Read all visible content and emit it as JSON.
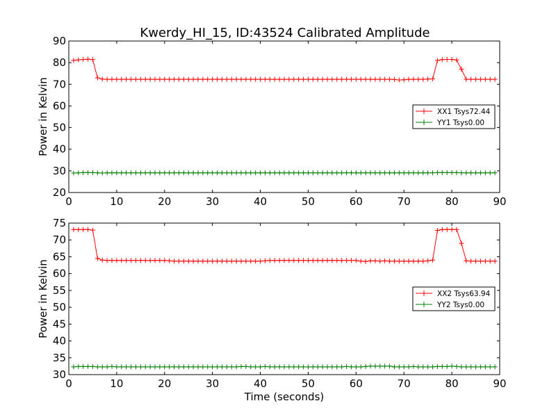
{
  "title": "Kwerdy_HI_15, ID:43524 Calibrated Amplitude",
  "colors": {
    "xx": "#ff0000",
    "yy": "#008000"
  },
  "chart_data": [
    {
      "type": "line",
      "ylabel": "Power in Kelvin",
      "xlabel": "",
      "xlim": [
        0,
        90
      ],
      "ylim": [
        20,
        90
      ],
      "xticks": [
        0,
        10,
        20,
        30,
        40,
        50,
        60,
        70,
        80,
        90
      ],
      "yticks": [
        20,
        30,
        40,
        50,
        60,
        70,
        80,
        90
      ],
      "grid": false,
      "legend_position": "center-right",
      "series": [
        {
          "name": "XX1 Tsys72.44",
          "color": "#ff0000",
          "x": [
            1,
            2,
            3,
            4,
            5,
            6,
            7,
            8,
            9,
            10,
            11,
            12,
            13,
            14,
            15,
            16,
            17,
            18,
            19,
            20,
            21,
            22,
            23,
            24,
            25,
            26,
            27,
            28,
            29,
            30,
            31,
            32,
            33,
            34,
            35,
            36,
            37,
            38,
            39,
            40,
            41,
            42,
            43,
            44,
            45,
            46,
            47,
            48,
            49,
            50,
            51,
            52,
            53,
            54,
            55,
            56,
            57,
            58,
            59,
            60,
            61,
            62,
            63,
            64,
            65,
            66,
            67,
            68,
            69,
            70,
            71,
            72,
            73,
            74,
            75,
            76,
            77,
            78,
            79,
            80,
            81,
            82,
            83,
            84,
            85,
            86,
            87,
            88,
            89
          ],
          "y": [
            81,
            81.3,
            81.5,
            81.6,
            81.4,
            73.0,
            72.4,
            72.3,
            72.3,
            72.3,
            72.3,
            72.3,
            72.3,
            72.3,
            72.3,
            72.3,
            72.3,
            72.3,
            72.3,
            72.3,
            72.3,
            72.3,
            72.3,
            72.3,
            72.3,
            72.3,
            72.3,
            72.3,
            72.3,
            72.3,
            72.3,
            72.3,
            72.3,
            72.3,
            72.3,
            72.3,
            72.3,
            72.3,
            72.3,
            72.3,
            72.3,
            72.3,
            72.3,
            72.3,
            72.3,
            72.3,
            72.3,
            72.3,
            72.3,
            72.3,
            72.3,
            72.3,
            72.3,
            72.3,
            72.3,
            72.3,
            72.3,
            72.3,
            72.3,
            72.3,
            72.3,
            72.3,
            72.3,
            72.3,
            72.3,
            72.3,
            72.3,
            72.2,
            72.0,
            72.1,
            72.3,
            72.3,
            72.3,
            72.3,
            72.4,
            72.5,
            81.0,
            81.4,
            81.5,
            81.5,
            81.2,
            77.0,
            72.3,
            72.3,
            72.3,
            72.3,
            72.3,
            72.3,
            72.3
          ]
        },
        {
          "name": "YY1 Tsys0.00",
          "color": "#008000",
          "x": [
            1,
            2,
            3,
            4,
            5,
            6,
            7,
            8,
            9,
            10,
            11,
            12,
            13,
            14,
            15,
            16,
            17,
            18,
            19,
            20,
            21,
            22,
            23,
            24,
            25,
            26,
            27,
            28,
            29,
            30,
            31,
            32,
            33,
            34,
            35,
            36,
            37,
            38,
            39,
            40,
            41,
            42,
            43,
            44,
            45,
            46,
            47,
            48,
            49,
            50,
            51,
            52,
            53,
            54,
            55,
            56,
            57,
            58,
            59,
            60,
            61,
            62,
            63,
            64,
            65,
            66,
            67,
            68,
            69,
            70,
            71,
            72,
            73,
            74,
            75,
            76,
            77,
            78,
            79,
            80,
            81,
            82,
            83,
            84,
            85,
            86,
            87,
            88,
            89
          ],
          "y": [
            29.0,
            29.1,
            29.2,
            29.2,
            29.2,
            29.1,
            29.0,
            29.1,
            29.1,
            29.1,
            29.1,
            29.1,
            29.1,
            29.1,
            29.1,
            29.1,
            29.1,
            29.1,
            29.1,
            29.1,
            29.1,
            29.1,
            29.1,
            29.1,
            29.1,
            29.1,
            29.1,
            29.1,
            29.1,
            29.1,
            29.1,
            29.1,
            29.1,
            29.1,
            29.1,
            29.1,
            29.1,
            29.1,
            29.1,
            29.1,
            29.1,
            29.1,
            29.1,
            29.1,
            29.1,
            29.1,
            29.1,
            29.1,
            29.1,
            29.1,
            29.1,
            29.1,
            29.1,
            29.1,
            29.1,
            29.1,
            29.1,
            29.1,
            29.1,
            29.1,
            29.1,
            29.1,
            29.1,
            29.1,
            29.1,
            29.1,
            29.1,
            29.1,
            29.1,
            29.1,
            29.1,
            29.1,
            29.1,
            29.1,
            29.1,
            29.1,
            29.2,
            29.2,
            29.2,
            29.2,
            29.2,
            29.1,
            29.1,
            29.1,
            29.1,
            29.1,
            29.1,
            29.1,
            29.1
          ]
        }
      ]
    },
    {
      "type": "line",
      "ylabel": "Power in Kelvin",
      "xlabel": "Time (seconds)",
      "xlim": [
        0,
        90
      ],
      "ylim": [
        30,
        75
      ],
      "xticks": [
        0,
        10,
        20,
        30,
        40,
        50,
        60,
        70,
        80,
        90
      ],
      "yticks": [
        30,
        35,
        40,
        45,
        50,
        55,
        60,
        65,
        70,
        75
      ],
      "grid": false,
      "legend_position": "center-right",
      "series": [
        {
          "name": "XX2 Tsys63.94",
          "color": "#ff0000",
          "x": [
            1,
            2,
            3,
            4,
            5,
            6,
            7,
            8,
            9,
            10,
            11,
            12,
            13,
            14,
            15,
            16,
            17,
            18,
            19,
            20,
            21,
            22,
            23,
            24,
            25,
            26,
            27,
            28,
            29,
            30,
            31,
            32,
            33,
            34,
            35,
            36,
            37,
            38,
            39,
            40,
            41,
            42,
            43,
            44,
            45,
            46,
            47,
            48,
            49,
            50,
            51,
            52,
            53,
            54,
            55,
            56,
            57,
            58,
            59,
            60,
            61,
            62,
            63,
            64,
            65,
            66,
            67,
            68,
            69,
            70,
            71,
            72,
            73,
            74,
            75,
            76,
            77,
            78,
            79,
            80,
            81,
            82,
            83,
            84,
            85,
            86,
            87,
            88,
            89
          ],
          "y": [
            73.1,
            73.1,
            73.1,
            73.1,
            72.9,
            64.5,
            64.0,
            63.9,
            63.9,
            63.9,
            63.9,
            63.9,
            63.9,
            63.9,
            63.9,
            63.9,
            63.9,
            63.9,
            63.9,
            63.9,
            63.8,
            63.7,
            63.7,
            63.7,
            63.7,
            63.7,
            63.7,
            63.7,
            63.7,
            63.7,
            63.7,
            63.7,
            63.7,
            63.7,
            63.7,
            63.7,
            63.7,
            63.7,
            63.7,
            63.7,
            63.8,
            63.9,
            63.9,
            63.9,
            63.9,
            63.9,
            63.9,
            63.9,
            63.9,
            63.9,
            63.9,
            63.9,
            63.9,
            63.9,
            63.9,
            63.9,
            63.9,
            63.9,
            63.9,
            63.9,
            63.7,
            63.6,
            63.8,
            63.8,
            63.7,
            63.8,
            63.7,
            63.7,
            63.7,
            63.7,
            63.7,
            63.7,
            63.7,
            63.7,
            63.8,
            64.0,
            72.8,
            73.1,
            73.1,
            73.1,
            73.1,
            69.0,
            63.8,
            63.7,
            63.7,
            63.7,
            63.7,
            63.7,
            63.7
          ]
        },
        {
          "name": "YY2 Tsys0.00",
          "color": "#008000",
          "x": [
            1,
            2,
            3,
            4,
            5,
            6,
            7,
            8,
            9,
            10,
            11,
            12,
            13,
            14,
            15,
            16,
            17,
            18,
            19,
            20,
            21,
            22,
            23,
            24,
            25,
            26,
            27,
            28,
            29,
            30,
            31,
            32,
            33,
            34,
            35,
            36,
            37,
            38,
            39,
            40,
            41,
            42,
            43,
            44,
            45,
            46,
            47,
            48,
            49,
            50,
            51,
            52,
            53,
            54,
            55,
            56,
            57,
            58,
            59,
            60,
            61,
            62,
            63,
            64,
            65,
            66,
            67,
            68,
            69,
            70,
            71,
            72,
            73,
            74,
            75,
            76,
            77,
            78,
            79,
            80,
            81,
            82,
            83,
            84,
            85,
            86,
            87,
            88,
            89
          ],
          "y": [
            32.3,
            32.4,
            32.4,
            32.4,
            32.4,
            32.3,
            32.3,
            32.3,
            32.4,
            32.3,
            32.3,
            32.3,
            32.3,
            32.3,
            32.3,
            32.3,
            32.3,
            32.3,
            32.3,
            32.3,
            32.3,
            32.3,
            32.3,
            32.3,
            32.3,
            32.3,
            32.3,
            32.3,
            32.3,
            32.3,
            32.3,
            32.3,
            32.3,
            32.3,
            32.3,
            32.4,
            32.4,
            32.3,
            32.3,
            32.3,
            32.4,
            32.3,
            32.3,
            32.3,
            32.3,
            32.3,
            32.3,
            32.3,
            32.3,
            32.3,
            32.3,
            32.3,
            32.3,
            32.3,
            32.3,
            32.3,
            32.3,
            32.4,
            32.3,
            32.3,
            32.3,
            32.4,
            32.5,
            32.5,
            32.5,
            32.5,
            32.5,
            32.3,
            32.3,
            32.3,
            32.3,
            32.4,
            32.3,
            32.3,
            32.3,
            32.3,
            32.4,
            32.4,
            32.4,
            32.5,
            32.4,
            32.3,
            32.3,
            32.3,
            32.3,
            32.3,
            32.3,
            32.3,
            32.3
          ]
        }
      ]
    }
  ]
}
